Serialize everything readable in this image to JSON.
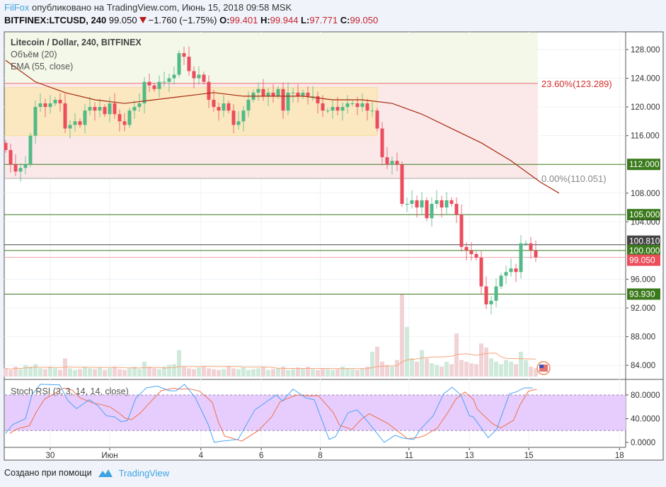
{
  "header": {
    "author": "FilFox",
    "published": "опубликовано на TradingView.com, Июнь 15, 2018 09:58 MSK",
    "symbol": "BITFINEX:LTCUSD, 240",
    "last": "99.050",
    "change": "−1.760 (−1.75%)",
    "o_label": "O:",
    "o": "99.401",
    "h_label": "H:",
    "h": "99.944",
    "l_label": "L:",
    "l": "97.771",
    "c_label": "C:",
    "c": "99.050"
  },
  "legend": {
    "title": "Litecoin / Dollar, 240, BITFINEX",
    "volume": "Объём (20)",
    "ema": "EMA (55, close)",
    "stoch": "Stoch RSI (3, 3, 14, 14, close)"
  },
  "footer": {
    "created_with": "Создано при помощи",
    "brand": "TradingView"
  },
  "colors": {
    "up": "#53b987",
    "down": "#eb4d5c",
    "ema": "#a52a0f",
    "level": "#3a7a1c",
    "fib": "#d32f2f",
    "stochK": "#4aa3f5",
    "stochD": "#f0704a",
    "stochBand": "#e7cdfd"
  },
  "chart_data": {
    "type": "candlestick",
    "title": "Litecoin / Dollar, 240, BITFINEX",
    "ylim": [
      81,
      130.5
    ],
    "y_ticks": [
      "128.000",
      "124.000",
      "120.000",
      "116.000",
      "108.000",
      "104.000",
      "96.000",
      "92.000",
      "88.000",
      "84.000"
    ],
    "y_tick_values": [
      128,
      124,
      120,
      116,
      108,
      104,
      96,
      92,
      88,
      84
    ],
    "x_ticks": [
      "30",
      "Июн",
      "4",
      "6",
      "8",
      "11",
      "13",
      "15",
      "18"
    ],
    "x_tick_candle_index": [
      9,
      21,
      39.4,
      51.6,
      63.5,
      81.4,
      93.6,
      105.6,
      123.9
    ],
    "close": [
      114,
      112,
      111,
      111.5,
      112,
      116,
      120,
      120.5,
      120,
      120.5,
      121,
      120.5,
      117,
      117.5,
      118,
      117.5,
      119.5,
      120,
      119.5,
      120,
      119,
      120.5,
      119,
      118,
      117.5,
      119.5,
      120,
      120.5,
      123.5,
      123,
      122.5,
      123.5,
      123.5,
      124,
      124.5,
      127.5,
      127,
      125,
      124,
      124.5,
      123.5,
      121,
      120,
      119.5,
      120.5,
      119.5,
      117.5,
      118,
      119.5,
      121,
      122,
      122.5,
      121.5,
      122,
      121.5,
      122.5,
      119.5,
      122,
      122,
      121.5,
      122,
      121.5,
      121.5,
      120.5,
      119.5,
      119.5,
      120,
      119.5,
      120,
      120.5,
      120.5,
      120,
      120.5,
      119.5,
      119.5,
      117,
      113,
      112,
      112.5,
      112,
      106.5,
      106.5,
      107,
      106,
      107,
      104.5,
      106.5,
      107,
      106,
      107,
      106.5,
      105,
      100.5,
      100,
      99.5,
      99,
      95,
      92.5,
      93,
      95,
      96.5,
      97,
      97.5,
      97,
      101,
      101,
      100,
      99.05
    ],
    "first_open": 115,
    "volume_relative": [
      10,
      8,
      12,
      9,
      14,
      12,
      15,
      10,
      9,
      12,
      10,
      8,
      22,
      10,
      8,
      9,
      12,
      10,
      9,
      11,
      8,
      10,
      12,
      9,
      8,
      10,
      12,
      9,
      18,
      12,
      10,
      9,
      12,
      14,
      15,
      32,
      12,
      10,
      9,
      11,
      12,
      10,
      9,
      8,
      9,
      12,
      10,
      9,
      11,
      8,
      9,
      10,
      12,
      8,
      9,
      10,
      12,
      8,
      9,
      11,
      10,
      12,
      9,
      8,
      10,
      9,
      8,
      9,
      12,
      10,
      9,
      8,
      10,
      12,
      30,
      36,
      18,
      14,
      12,
      20,
      100,
      60,
      22,
      18,
      32,
      22,
      16,
      14,
      12,
      18,
      15,
      52,
      20,
      18,
      16,
      15,
      40,
      35,
      22,
      18,
      15,
      20,
      18,
      15,
      30,
      20,
      12,
      10
    ],
    "volume_ma": "orange line",
    "ema55": [
      [
        0,
        126.5
      ],
      [
        6,
        123.5
      ],
      [
        12,
        122
      ],
      [
        18,
        121
      ],
      [
        24,
        120.5
      ],
      [
        30,
        121
      ],
      [
        36,
        121.5
      ],
      [
        42,
        122
      ],
      [
        48,
        121.5
      ],
      [
        54,
        121.5
      ],
      [
        60,
        121.5
      ],
      [
        66,
        121
      ],
      [
        72,
        121
      ],
      [
        78,
        120.5
      ],
      [
        84,
        119
      ],
      [
        90,
        117
      ],
      [
        96,
        115
      ],
      [
        102,
        112.5
      ],
      [
        108,
        109.5
      ],
      [
        111.7,
        108
      ]
    ],
    "levels": [
      {
        "label": "112.000",
        "value": 112,
        "color": "#3a7a1c"
      },
      {
        "label": "105.000",
        "value": 105,
        "color": "#3a7a1c"
      },
      {
        "label": "100.810",
        "value": 100.81,
        "color": "#444444"
      },
      {
        "label": "100.000",
        "value": 100,
        "color": "#3a7a1c"
      },
      {
        "label": "99.050",
        "value": 99.05,
        "color": "#eb4d5c"
      },
      {
        "label": "93.930",
        "value": 93.93,
        "color": "#3a7a1c"
      }
    ],
    "fib": [
      {
        "label": "23.60%(123.289)",
        "value": 123.289
      },
      {
        "label": "0.00%(110.051)",
        "value": 110.051
      }
    ],
    "range_box": {
      "top": 122.7,
      "bottom": 116,
      "from_index": 0,
      "to_index": 75
    },
    "stoch": {
      "ylim": [
        -5,
        107
      ],
      "y_ticks": [
        "80.0000",
        "40.0000",
        "0.0000"
      ],
      "y_tick_values": [
        80,
        40,
        0
      ],
      "band": [
        20,
        80
      ],
      "k": [
        [
          0,
          15
        ],
        [
          1.4,
          30
        ],
        [
          4,
          40
        ],
        [
          5.3,
          80
        ],
        [
          7,
          98
        ],
        [
          10.9,
          97
        ],
        [
          12.6,
          70
        ],
        [
          14.3,
          57
        ],
        [
          16.9,
          72
        ],
        [
          18.6,
          62
        ],
        [
          20.3,
          45
        ],
        [
          22,
          43
        ],
        [
          23.3,
          35
        ],
        [
          24.6,
          37
        ],
        [
          26.3,
          75
        ],
        [
          28.4,
          92
        ],
        [
          30.6,
          95
        ],
        [
          33.1,
          87
        ],
        [
          34.4,
          87
        ],
        [
          36.1,
          98
        ],
        [
          38.3,
          75
        ],
        [
          40.9,
          30
        ],
        [
          42.1,
          0
        ],
        [
          43.4,
          2
        ],
        [
          46.9,
          5
        ],
        [
          50.3,
          55
        ],
        [
          52.9,
          70
        ],
        [
          54.6,
          80
        ],
        [
          55.9,
          70
        ],
        [
          58,
          90
        ],
        [
          60.6,
          75
        ],
        [
          62.3,
          72
        ],
        [
          65.3,
          5
        ],
        [
          66.6,
          10
        ],
        [
          69.1,
          50
        ],
        [
          70.9,
          55
        ],
        [
          72.6,
          40
        ],
        [
          76.4,
          0
        ],
        [
          78.6,
          12
        ],
        [
          80.3,
          7
        ],
        [
          82.4,
          5
        ],
        [
          83.7,
          22
        ],
        [
          86.3,
          45
        ],
        [
          88.4,
          82
        ],
        [
          90.1,
          93
        ],
        [
          91.9,
          80
        ],
        [
          93.6,
          45
        ],
        [
          94.4,
          43
        ],
        [
          97.4,
          8
        ],
        [
          99.1,
          22
        ],
        [
          101.7,
          82
        ],
        [
          103,
          85
        ],
        [
          104.7,
          92
        ],
        [
          106.4,
          92
        ]
      ]
    }
  }
}
